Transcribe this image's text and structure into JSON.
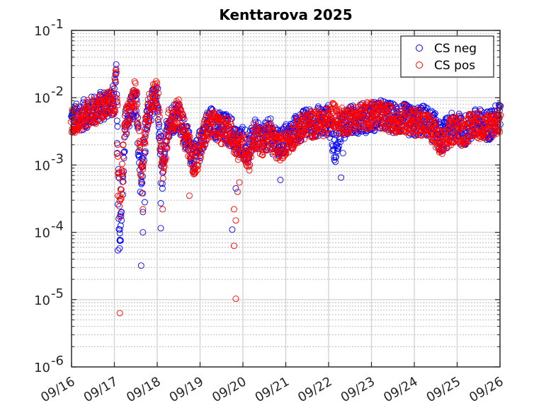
{
  "chart_data": {
    "type": "scatter",
    "title": "Kenttarova 2025",
    "xlabel": "",
    "ylabel": "",
    "x_type": "date",
    "xlim": [
      "2025-09-16",
      "2025-09-26"
    ],
    "ylim": [
      1e-06,
      0.1
    ],
    "yscale": "log",
    "grid": true,
    "minor_grid": true,
    "legend_position": "top-right",
    "x_ticks": [
      "09/16",
      "09/17",
      "09/18",
      "09/19",
      "09/20",
      "09/21",
      "09/22",
      "09/23",
      "09/24",
      "09/25",
      "09/26"
    ],
    "y_ticks": [
      {
        "value": 1e-06,
        "base": "10",
        "exp": "-6"
      },
      {
        "value": 1e-05,
        "base": "10",
        "exp": "-5"
      },
      {
        "value": 0.0001,
        "base": "10",
        "exp": "-4"
      },
      {
        "value": 0.001,
        "base": "10",
        "exp": "-3"
      },
      {
        "value": 0.01,
        "base": "10",
        "exp": "-2"
      },
      {
        "value": 0.1,
        "base": "10",
        "exp": "-1"
      }
    ],
    "series": [
      {
        "name": "CS neg",
        "color": "#0000ff",
        "marker": "circle-open",
        "x": [
          "2025-09-16T00:00",
          "2025-09-16T03:00",
          "2025-09-16T06:00",
          "2025-09-16T09:00",
          "2025-09-16T12:00",
          "2025-09-16T15:00",
          "2025-09-16T18:00",
          "2025-09-16T21:00",
          "2025-09-17T00:00",
          "2025-09-17T01:00",
          "2025-09-17T02:00",
          "2025-09-17T03:00",
          "2025-09-17T06:00",
          "2025-09-17T09:00",
          "2025-09-17T12:00",
          "2025-09-17T15:00",
          "2025-09-17T18:00",
          "2025-09-17T21:00",
          "2025-09-18T00:00",
          "2025-09-18T03:00",
          "2025-09-18T06:00",
          "2025-09-18T09:00",
          "2025-09-18T12:00",
          "2025-09-18T15:00",
          "2025-09-18T18:00",
          "2025-09-18T21:00",
          "2025-09-19T00:00",
          "2025-09-19T03:00",
          "2025-09-19T06:00",
          "2025-09-19T09:00",
          "2025-09-19T12:00",
          "2025-09-19T15:00",
          "2025-09-19T18:00",
          "2025-09-19T21:00",
          "2025-09-20T00:00",
          "2025-09-20T03:00",
          "2025-09-20T06:00",
          "2025-09-20T09:00",
          "2025-09-20T12:00",
          "2025-09-20T15:00",
          "2025-09-20T18:00",
          "2025-09-20T21:00",
          "2025-09-21T00:00",
          "2025-09-21T03:00",
          "2025-09-21T06:00",
          "2025-09-21T09:00",
          "2025-09-21T12:00",
          "2025-09-21T15:00",
          "2025-09-21T18:00",
          "2025-09-21T21:00",
          "2025-09-22T00:00",
          "2025-09-22T02:00",
          "2025-09-22T03:00",
          "2025-09-22T06:00",
          "2025-09-22T09:00",
          "2025-09-22T12:00",
          "2025-09-22T15:00",
          "2025-09-22T18:00",
          "2025-09-22T21:00",
          "2025-09-23T00:00",
          "2025-09-23T03:00",
          "2025-09-23T06:00",
          "2025-09-23T09:00",
          "2025-09-23T12:00",
          "2025-09-23T15:00",
          "2025-09-23T18:00",
          "2025-09-23T21:00",
          "2025-09-24T00:00",
          "2025-09-24T03:00",
          "2025-09-24T06:00",
          "2025-09-24T09:00",
          "2025-09-24T12:00",
          "2025-09-24T15:00",
          "2025-09-24T18:00",
          "2025-09-24T21:00",
          "2025-09-25T00:00",
          "2025-09-25T03:00",
          "2025-09-25T06:00",
          "2025-09-25T09:00",
          "2025-09-25T12:00",
          "2025-09-25T15:00",
          "2025-09-25T18:00",
          "2025-09-25T21:00",
          "2025-09-26T00:00"
        ],
        "y": [
          0.0045,
          0.005,
          0.0055,
          0.006,
          0.0065,
          0.007,
          0.0078,
          0.0085,
          0.0095,
          0.02,
          0.0015,
          6e-05,
          0.004,
          0.006,
          0.009,
          0.0005,
          0.0045,
          0.008,
          0.009,
          0.0006,
          0.004,
          0.005,
          0.006,
          0.003,
          0.002,
          0.0012,
          0.002,
          0.0035,
          0.0045,
          0.004,
          0.0035,
          0.0035,
          0.003,
          0.002,
          0.0025,
          0.0015,
          0.003,
          0.0025,
          0.0025,
          0.003,
          0.0022,
          0.002,
          0.0025,
          0.0028,
          0.0035,
          0.0038,
          0.0042,
          0.0042,
          0.0045,
          0.0043,
          0.0048,
          0.003,
          0.0015,
          0.0035,
          0.0042,
          0.0045,
          0.0048,
          0.005,
          0.005,
          0.0052,
          0.0055,
          0.0055,
          0.0052,
          0.005,
          0.0048,
          0.005,
          0.0045,
          0.0042,
          0.0048,
          0.0045,
          0.004,
          0.0035,
          0.0025,
          0.003,
          0.0035,
          0.004,
          0.003,
          0.0035,
          0.004,
          0.0042,
          0.0038,
          0.004,
          0.0045,
          0.0052
        ],
        "outliers": [
          {
            "x": "2025-09-17T02:00",
            "y": 5.4e-05
          },
          {
            "x": "2025-09-17T03:00",
            "y": 7.5e-05
          },
          {
            "x": "2025-09-17T03:00",
            "y": 0.00011
          },
          {
            "x": "2025-09-17T04:00",
            "y": 0.00015
          },
          {
            "x": "2025-09-17T02:00",
            "y": 0.00026
          },
          {
            "x": "2025-09-17T15:00",
            "y": 3.2e-05
          },
          {
            "x": "2025-09-17T16:00",
            "y": 0.0001
          },
          {
            "x": "2025-09-17T16:00",
            "y": 0.0002
          },
          {
            "x": "2025-09-17T17:00",
            "y": 0.00028
          },
          {
            "x": "2025-09-18T02:00",
            "y": 0.000115
          },
          {
            "x": "2025-09-18T02:00",
            "y": 0.00027
          },
          {
            "x": "2025-09-18T02:00",
            "y": 0.00054
          },
          {
            "x": "2025-09-19T18:00",
            "y": 0.00011
          },
          {
            "x": "2025-09-19T20:00",
            "y": 0.00045
          },
          {
            "x": "2025-09-20T21:00",
            "y": 0.0006
          },
          {
            "x": "2025-09-22T07:00",
            "y": 0.00065
          },
          {
            "x": "2025-09-22T08:00",
            "y": 0.0015
          }
        ]
      },
      {
        "name": "CS pos",
        "color": "#ff0000",
        "marker": "circle-open",
        "x": [
          "2025-09-16T00:00",
          "2025-09-16T03:00",
          "2025-09-16T06:00",
          "2025-09-16T09:00",
          "2025-09-16T12:00",
          "2025-09-16T15:00",
          "2025-09-16T18:00",
          "2025-09-16T21:00",
          "2025-09-17T00:00",
          "2025-09-17T01:00",
          "2025-09-17T02:00",
          "2025-09-17T03:00",
          "2025-09-17T06:00",
          "2025-09-17T09:00",
          "2025-09-17T12:00",
          "2025-09-17T15:00",
          "2025-09-17T18:00",
          "2025-09-17T21:00",
          "2025-09-18T00:00",
          "2025-09-18T03:00",
          "2025-09-18T06:00",
          "2025-09-18T09:00",
          "2025-09-18T12:00",
          "2025-09-18T15:00",
          "2025-09-18T18:00",
          "2025-09-18T21:00",
          "2025-09-19T00:00",
          "2025-09-19T03:00",
          "2025-09-19T06:00",
          "2025-09-19T09:00",
          "2025-09-19T12:00",
          "2025-09-19T15:00",
          "2025-09-19T18:00",
          "2025-09-19T21:00",
          "2025-09-20T00:00",
          "2025-09-20T03:00",
          "2025-09-20T06:00",
          "2025-09-20T09:00",
          "2025-09-20T12:00",
          "2025-09-20T15:00",
          "2025-09-20T18:00",
          "2025-09-20T21:00",
          "2025-09-21T00:00",
          "2025-09-21T03:00",
          "2025-09-21T06:00",
          "2025-09-21T09:00",
          "2025-09-21T12:00",
          "2025-09-21T15:00",
          "2025-09-21T18:00",
          "2025-09-21T21:00",
          "2025-09-22T00:00",
          "2025-09-22T02:00",
          "2025-09-22T03:00",
          "2025-09-22T06:00",
          "2025-09-22T09:00",
          "2025-09-22T12:00",
          "2025-09-22T15:00",
          "2025-09-22T18:00",
          "2025-09-22T21:00",
          "2025-09-23T00:00",
          "2025-09-23T03:00",
          "2025-09-23T06:00",
          "2025-09-23T09:00",
          "2025-09-23T12:00",
          "2025-09-23T15:00",
          "2025-09-23T18:00",
          "2025-09-23T21:00",
          "2025-09-24T00:00",
          "2025-09-24T03:00",
          "2025-09-24T06:00",
          "2025-09-24T09:00",
          "2025-09-24T12:00",
          "2025-09-24T15:00",
          "2025-09-24T18:00",
          "2025-09-24T21:00",
          "2025-09-25T00:00",
          "2025-09-25T03:00",
          "2025-09-25T06:00",
          "2025-09-25T09:00",
          "2025-09-25T12:00",
          "2025-09-25T15:00",
          "2025-09-25T18:00",
          "2025-09-25T21:00",
          "2025-09-26T00:00"
        ],
        "y": [
          0.0042,
          0.0048,
          0.0052,
          0.0058,
          0.0062,
          0.0068,
          0.0075,
          0.0082,
          0.009,
          0.018,
          0.0012,
          0.00025,
          0.004,
          0.007,
          0.012,
          0.0008,
          0.005,
          0.01,
          0.012,
          0.0008,
          0.004,
          0.005,
          0.006,
          0.003,
          0.0018,
          0.001,
          0.0018,
          0.0032,
          0.0042,
          0.0038,
          0.0032,
          0.0032,
          0.0028,
          0.0018,
          0.002,
          0.0012,
          0.0028,
          0.0022,
          0.0022,
          0.0028,
          0.002,
          0.0018,
          0.0022,
          0.0025,
          0.0032,
          0.0035,
          0.004,
          0.004,
          0.0042,
          0.0042,
          0.0045,
          0.006,
          0.0055,
          0.0045,
          0.0045,
          0.0048,
          0.005,
          0.0052,
          0.0055,
          0.0055,
          0.0055,
          0.0052,
          0.005,
          0.0048,
          0.0047,
          0.005,
          0.0045,
          0.0042,
          0.0045,
          0.004,
          0.0035,
          0.0028,
          0.0018,
          0.0025,
          0.0032,
          0.0038,
          0.003,
          0.0035,
          0.004,
          0.004,
          0.0035,
          0.0038,
          0.0042,
          0.0048
        ],
        "outliers": [
          {
            "x": "2025-09-17T03:00",
            "y": 6.3e-06
          },
          {
            "x": "2025-09-17T03:00",
            "y": 0.00017
          },
          {
            "x": "2025-09-17T02:00",
            "y": 0.00035
          },
          {
            "x": "2025-09-17T16:00",
            "y": 0.00022
          },
          {
            "x": "2025-09-17T16:00",
            "y": 0.00038
          },
          {
            "x": "2025-09-18T03:00",
            "y": 0.00022
          },
          {
            "x": "2025-09-18T18:00",
            "y": 0.00035
          },
          {
            "x": "2025-09-19T20:00",
            "y": 1.03e-05
          },
          {
            "x": "2025-09-19T19:00",
            "y": 6.3e-05
          },
          {
            "x": "2025-09-19T20:00",
            "y": 0.00015
          },
          {
            "x": "2025-09-19T19:00",
            "y": 0.00022
          },
          {
            "x": "2025-09-19T21:00",
            "y": 0.0004
          },
          {
            "x": "2025-09-19T22:00",
            "y": 0.00055
          }
        ]
      }
    ]
  }
}
